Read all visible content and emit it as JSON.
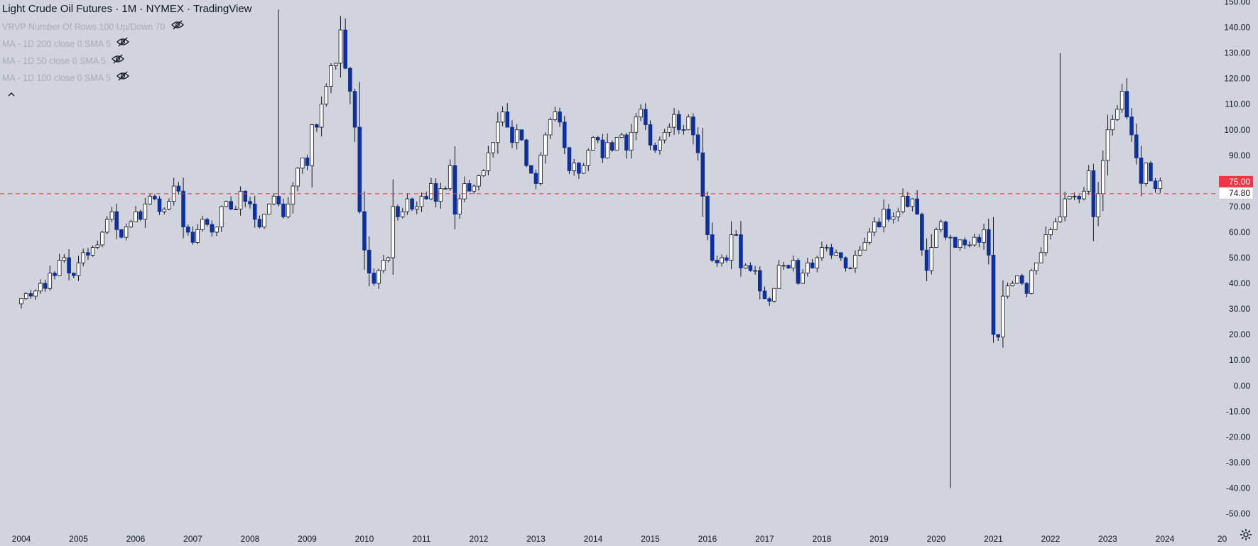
{
  "header": {
    "title": "Light Crude Oil Futures · 1M · NYMEX · TradingView",
    "indicators": [
      {
        "label": "VRVP Number Of Rows 100 Up/Down 70",
        "icon": "eye-off-icon"
      },
      {
        "label": "MA - 1D 200 close 0 SMA 5",
        "icon": "eye-off-icon"
      },
      {
        "label": "MA - 1D 50 close 0 SMA 5",
        "icon": "eye-off-icon"
      },
      {
        "label": "MA - 1D 100 close 0 SMA 5",
        "icon": "eye-off-icon"
      }
    ],
    "collapse_icon": "chevron-up-icon"
  },
  "colors": {
    "background": "#d1d4dc",
    "up_candle": "#ffffff",
    "down_candle": "#0e2f9e",
    "wick": "#131722",
    "price_line": "#f23645",
    "axis_text": "#131722"
  },
  "price_labels": {
    "alert": "75.00",
    "last": "74.80"
  },
  "settings_icon": "gear-icon",
  "chart_data": {
    "type": "candlestick",
    "timeframe": "1M",
    "ylim": [
      -50,
      150
    ],
    "y_ticks": [
      150,
      140,
      130,
      120,
      110,
      100,
      90,
      80,
      70,
      60,
      50,
      40,
      30,
      20,
      10,
      0,
      -10,
      -20,
      -30,
      -40,
      -50
    ],
    "x_ticks": [
      "2004",
      "2005",
      "2006",
      "2007",
      "2008",
      "2009",
      "2010",
      "2011",
      "2012",
      "2013",
      "2014",
      "2015",
      "2016",
      "2017",
      "2018",
      "2019",
      "2020",
      "2021",
      "2022",
      "2023",
      "2024",
      "20"
    ],
    "horizontal_line": 75,
    "grid": false,
    "start": "2003-12",
    "closes": [
      32,
      34,
      36,
      35,
      37,
      40,
      38,
      44,
      43,
      49,
      50,
      44,
      43,
      48,
      52,
      51,
      54,
      55,
      60,
      65,
      68,
      61,
      58,
      62,
      64,
      68,
      65,
      71,
      74,
      73,
      68,
      69,
      72,
      78,
      76,
      62,
      60,
      56,
      61,
      65,
      63,
      60,
      62,
      70,
      72,
      69,
      69,
      76,
      72,
      71,
      65,
      62,
      67,
      71,
      74,
      71,
      66,
      71,
      78,
      85,
      89,
      86,
      102,
      101,
      110,
      117,
      125,
      126,
      139,
      124,
      115,
      101,
      68,
      53,
      44,
      40,
      45,
      49,
      50,
      70,
      66,
      68,
      73,
      69,
      70,
      74,
      73,
      79,
      72,
      77,
      77,
      86,
      67,
      73,
      79,
      76,
      78,
      82,
      84,
      91,
      95,
      103,
      107,
      101,
      95,
      100,
      96,
      86,
      83,
      79,
      90,
      98,
      104,
      107,
      103,
      93,
      84,
      87,
      83,
      86,
      92,
      97,
      96,
      89,
      95,
      92,
      97,
      98,
      92,
      99,
      105,
      108,
      102,
      94,
      92,
      96,
      99,
      101,
      106,
      100,
      100,
      105,
      98,
      91,
      74,
      59,
      49,
      48,
      50,
      49,
      59,
      59,
      46,
      47,
      45,
      45,
      37,
      34,
      33,
      38,
      47,
      47,
      46,
      49,
      40,
      44,
      48,
      46,
      50,
      54,
      54,
      51,
      52,
      50,
      46,
      46,
      51,
      53,
      56,
      60,
      64,
      62,
      69,
      65,
      66,
      68,
      74,
      70,
      73,
      67,
      53,
      45,
      54,
      61,
      64,
      58,
      58,
      54,
      57,
      55,
      55,
      58,
      56,
      61,
      51,
      20,
      19,
      35,
      39,
      40,
      43,
      40,
      36,
      45,
      48,
      52,
      59,
      61,
      64,
      66,
      73,
      74,
      74,
      73,
      76,
      84,
      66,
      75,
      88,
      100,
      104,
      108,
      115,
      105,
      98,
      89,
      79,
      87,
      80,
      77,
      80
    ]
  }
}
